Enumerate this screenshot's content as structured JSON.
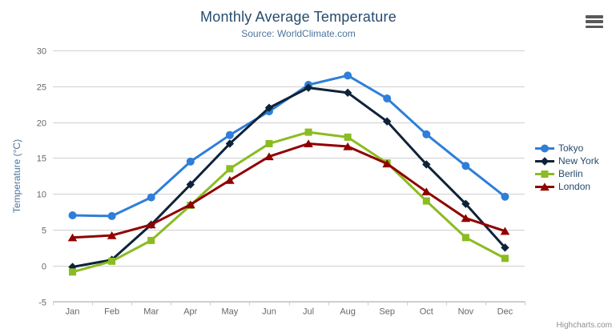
{
  "chart": {
    "credits": "Highcharts.com"
  },
  "chart_data": {
    "type": "line",
    "title": "Monthly Average Temperature",
    "subtitle": "Source: WorldClimate.com",
    "categories": [
      "Jan",
      "Feb",
      "Mar",
      "Apr",
      "May",
      "Jun",
      "Jul",
      "Aug",
      "Sep",
      "Oct",
      "Nov",
      "Dec"
    ],
    "series": [
      {
        "name": "Tokyo",
        "color": "#2f7ed8",
        "marker": "circle",
        "values": [
          7.0,
          6.9,
          9.5,
          14.5,
          18.2,
          21.5,
          25.2,
          26.5,
          23.3,
          18.3,
          13.9,
          9.6
        ]
      },
      {
        "name": "New York",
        "color": "#0d233a",
        "marker": "diamond",
        "values": [
          -0.2,
          0.8,
          5.7,
          11.3,
          17.0,
          22.0,
          24.8,
          24.1,
          20.1,
          14.1,
          8.6,
          2.5
        ]
      },
      {
        "name": "Berlin",
        "color": "#8bbc21",
        "marker": "square",
        "values": [
          -0.9,
          0.6,
          3.5,
          8.4,
          13.5,
          17.0,
          18.6,
          17.9,
          14.3,
          9.0,
          3.9,
          1.0
        ]
      },
      {
        "name": "London",
        "color": "#910000",
        "marker": "triangle",
        "values": [
          3.9,
          4.2,
          5.7,
          8.5,
          11.9,
          15.2,
          17.0,
          16.6,
          14.2,
          10.3,
          6.6,
          4.8
        ]
      }
    ],
    "xlabel": "",
    "ylabel": "Temperature (°C)",
    "ylim": [
      -5,
      30
    ],
    "yticks": [
      30,
      25,
      20,
      15,
      10,
      5,
      0,
      -5
    ],
    "grid": true,
    "legend_position": "right",
    "colors": {
      "grid": "#d0d0d0",
      "axis_line": "#c0d0e0",
      "tick": "#c0d0e0",
      "axis_label": "#666666",
      "title": "#274b6d",
      "subtitle": "#4d759e",
      "axis_title": "#4d759e",
      "legend_text": "#274b6d",
      "credits": "#909090",
      "menu_icon": "#595959"
    }
  }
}
